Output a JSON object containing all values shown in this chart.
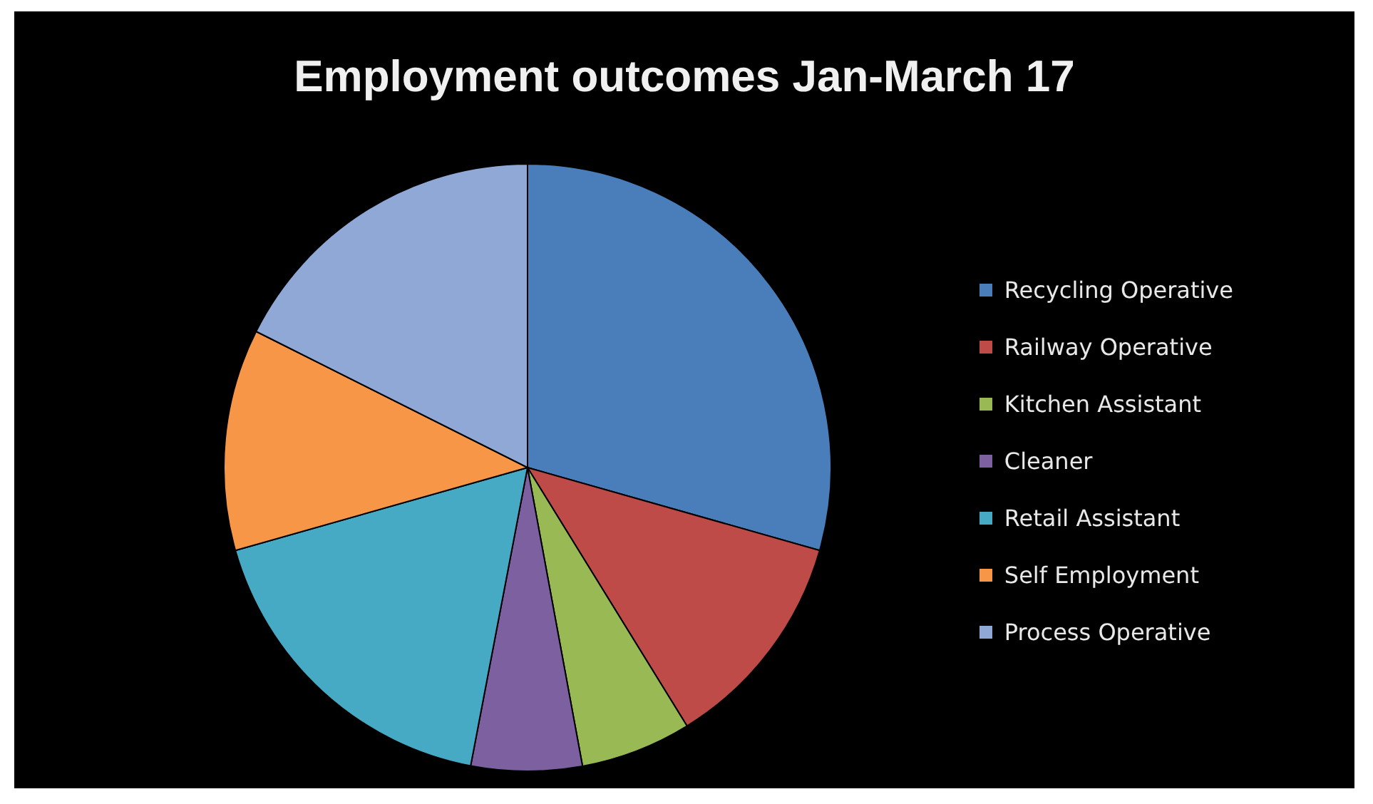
{
  "chart_data": {
    "type": "pie",
    "title": "Employment outcomes Jan-March 17",
    "categories": [
      "Recycling Operative",
      "Railway Operative",
      "Kitchen Assistant",
      "Cleaner",
      "Retail Assistant",
      "Self Employment",
      "Process Operative"
    ],
    "values": [
      29.4,
      11.8,
      5.9,
      5.9,
      17.6,
      11.8,
      17.6
    ],
    "colors": [
      "#4a7ebb",
      "#be4b48",
      "#98b954",
      "#7d60a0",
      "#46aac5",
      "#f79646",
      "#8fa8d6"
    ],
    "legend": "right"
  }
}
